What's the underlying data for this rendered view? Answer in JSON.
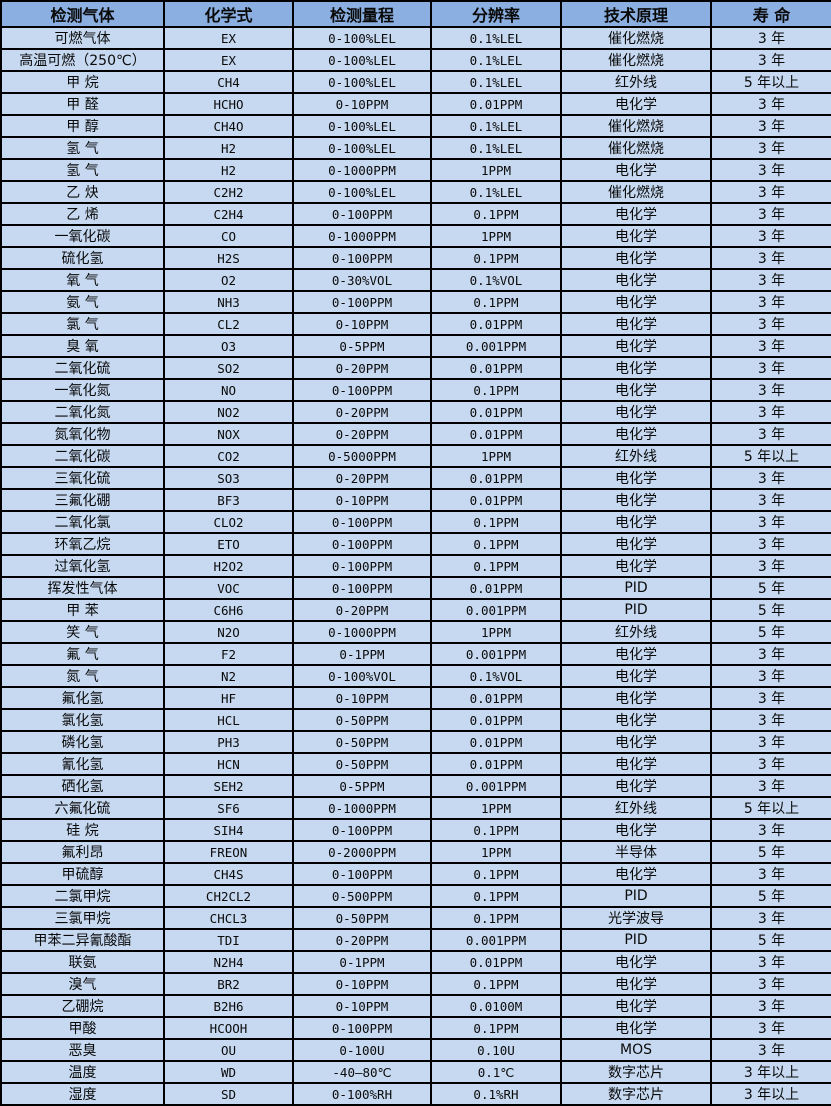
{
  "colors": {
    "header_bg": "#8AAFE0",
    "row_bg": "#C6D9F1",
    "border": "#000000",
    "text": "#0a0a0a"
  },
  "table": {
    "headers": [
      "检测气体",
      "化学式",
      "检测量程",
      "分辨率",
      "技术原理",
      "寿 命"
    ],
    "rows": [
      [
        "可燃气体",
        "EX",
        "0-100%LEL",
        "0.1%LEL",
        "催化燃烧",
        "3 年"
      ],
      [
        "高温可燃（250℃）",
        "EX",
        "0-100%LEL",
        "0.1%LEL",
        "催化燃烧",
        "3 年"
      ],
      [
        "甲 烷",
        "CH4",
        "0-100%LEL",
        "0.1%LEL",
        "红外线",
        "5 年以上"
      ],
      [
        "甲 醛",
        "HCHO",
        "0-10PPM",
        "0.01PPM",
        "电化学",
        "3 年"
      ],
      [
        "甲 醇",
        "CH4O",
        "0-100%LEL",
        "0.1%LEL",
        "催化燃烧",
        "3 年"
      ],
      [
        "氢 气",
        "H2",
        "0-100%LEL",
        "0.1%LEL",
        "催化燃烧",
        "3 年"
      ],
      [
        "氢 气",
        "H2",
        "0-1000PPM",
        "1PPM",
        "电化学",
        "3 年"
      ],
      [
        "乙 炔",
        "C2H2",
        "0-100%LEL",
        "0.1%LEL",
        "催化燃烧",
        "3 年"
      ],
      [
        "乙 烯",
        "C2H4",
        "0-100PPM",
        "0.1PPM",
        "电化学",
        "3 年"
      ],
      [
        "一氧化碳",
        "CO",
        "0-1000PPM",
        "1PPM",
        "电化学",
        "3 年"
      ],
      [
        "硫化氢",
        "H2S",
        "0-100PPM",
        "0.1PPM",
        "电化学",
        "3 年"
      ],
      [
        "氧 气",
        "O2",
        "0-30%VOL",
        "0.1%VOL",
        "电化学",
        "3 年"
      ],
      [
        "氨 气",
        "NH3",
        "0-100PPM",
        "0.1PPM",
        "电化学",
        "3 年"
      ],
      [
        "氯 气",
        "CL2",
        "0-10PPM",
        "0.01PPM",
        "电化学",
        "3 年"
      ],
      [
        "臭 氧",
        "O3",
        "0-5PPM",
        "0.001PPM",
        "电化学",
        "3 年"
      ],
      [
        "二氧化硫",
        "SO2",
        "0-20PPM",
        "0.01PPM",
        "电化学",
        "3 年"
      ],
      [
        "一氧化氮",
        "NO",
        "0-100PPM",
        "0.1PPM",
        "电化学",
        "3 年"
      ],
      [
        "二氧化氮",
        "NO2",
        "0-20PPM",
        "0.01PPM",
        "电化学",
        "3 年"
      ],
      [
        "氮氧化物",
        "NOX",
        "0-20PPM",
        "0.01PPM",
        "电化学",
        "3 年"
      ],
      [
        "二氧化碳",
        "CO2",
        "0-5000PPM",
        "1PPM",
        "红外线",
        "5 年以上"
      ],
      [
        "三氧化硫",
        "SO3",
        "0-20PPM",
        "0.01PPM",
        "电化学",
        "3 年"
      ],
      [
        "三氟化硼",
        "BF3",
        "0-10PPM",
        "0.01PPM",
        "电化学",
        "3 年"
      ],
      [
        "二氧化氯",
        "CLO2",
        "0-100PPM",
        "0.1PPM",
        "电化学",
        "3 年"
      ],
      [
        "环氧乙烷",
        "ETO",
        "0-100PPM",
        "0.1PPM",
        "电化学",
        "3 年"
      ],
      [
        "过氧化氢",
        "H2O2",
        "0-100PPM",
        "0.1PPM",
        "电化学",
        "3 年"
      ],
      [
        "挥发性气体",
        "VOC",
        "0-100PPM",
        "0.01PPM",
        "PID",
        "5 年"
      ],
      [
        "甲 苯",
        "C6H6",
        "0-20PPM",
        "0.001PPM",
        "PID",
        "5 年"
      ],
      [
        "笑 气",
        "N2O",
        "0-1000PPM",
        "1PPM",
        "红外线",
        "5 年"
      ],
      [
        "氟 气",
        "F2",
        "0-1PPM",
        "0.001PPM",
        "电化学",
        "3 年"
      ],
      [
        "氮 气",
        "N2",
        "0-100%VOL",
        "0.1%VOL",
        "电化学",
        "3 年"
      ],
      [
        "氟化氢",
        "HF",
        "0-10PPM",
        "0.01PPM",
        "电化学",
        "3 年"
      ],
      [
        "氯化氢",
        "HCL",
        "0-50PPM",
        "0.01PPM",
        "电化学",
        "3 年"
      ],
      [
        "磷化氢",
        "PH3",
        "0-50PPM",
        "0.01PPM",
        "电化学",
        "3 年"
      ],
      [
        "氰化氢",
        "HCN",
        "0-50PPM",
        "0.01PPM",
        "电化学",
        "3 年"
      ],
      [
        "硒化氢",
        "SEH2",
        "0-5PPM",
        "0.001PPM",
        "电化学",
        "3 年"
      ],
      [
        "六氟化硫",
        "SF6",
        "0-1000PPM",
        "1PPM",
        "红外线",
        "5 年以上"
      ],
      [
        "硅 烷",
        "SIH4",
        "0-100PPM",
        "0.1PPM",
        "电化学",
        "3 年"
      ],
      [
        "氟利昂",
        "FREON",
        "0-2000PPM",
        "1PPM",
        "半导体",
        "5 年"
      ],
      [
        "甲硫醇",
        "CH4S",
        "0-100PPM",
        "0.1PPM",
        "电化学",
        "3 年"
      ],
      [
        "二氯甲烷",
        "CH2CL2",
        "0-500PPM",
        "0.1PPM",
        "PID",
        "5 年"
      ],
      [
        "三氯甲烷",
        "CHCL3",
        "0-50PPM",
        "0.1PPM",
        "光学波导",
        "3 年"
      ],
      [
        "甲苯二异氰酸酯",
        "TDI",
        "0-20PPM",
        "0.001PPM",
        "PID",
        "5 年"
      ],
      [
        "联氨",
        "N2H4",
        "0-1PPM",
        "0.01PPM",
        "电化学",
        "3 年"
      ],
      [
        "溴气",
        "BR2",
        "0-10PPM",
        "0.1PPM",
        "电化学",
        "3 年"
      ],
      [
        "乙硼烷",
        "B2H6",
        "0-10PPM",
        "0.0100M",
        "电化学",
        "3 年"
      ],
      [
        "甲酸",
        "HCOOH",
        "0-100PPM",
        "0.1PPM",
        "电化学",
        "3 年"
      ],
      [
        "恶臭",
        "OU",
        "0-100U",
        "0.10U",
        "MOS",
        "3 年"
      ],
      [
        "温度",
        "WD",
        "-40—80℃",
        "0.1℃",
        "数字芯片",
        "3 年以上"
      ],
      [
        "湿度",
        "SD",
        "0-100%RH",
        "0.1%RH",
        "数字芯片",
        "3 年以上"
      ]
    ]
  }
}
